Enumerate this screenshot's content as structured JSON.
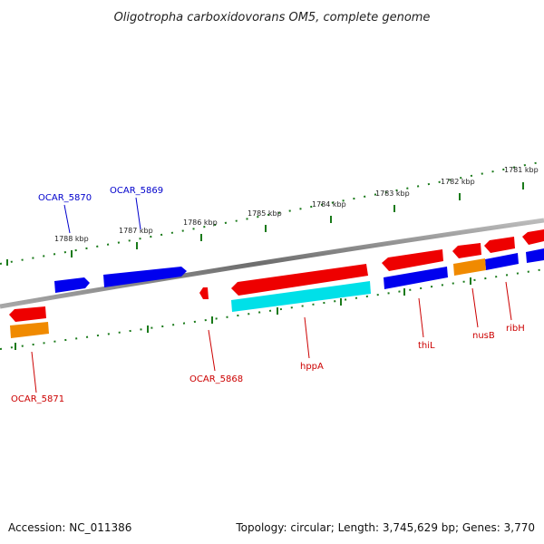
{
  "title": "Oligotropha carboxidovorans OM5, complete genome",
  "footer": {
    "accession": "Accession: NC_011386",
    "summary": "Topology: circular; Length: 3,745,629 bp; Genes: 3,770"
  },
  "colors": {
    "backbone": "#7a7a7a",
    "tick": "#1a7a1a",
    "forward_label": "#0000cc",
    "reverse_label": "#cc0000",
    "blue": "#0000ee",
    "red": "#ee0000",
    "cyan": "#00e0e8",
    "orange": "#f08a00"
  },
  "scale": {
    "tick_labels": [
      "1788 kbp",
      "1787 kbp",
      "1786 kbp",
      "1785 kbp",
      "1784 kbp",
      "1783 kbp",
      "1782 kbp",
      "1781 kbp"
    ]
  },
  "gene_labels": {
    "ocar_5870": "OCAR_5870",
    "ocar_5869": "OCAR_5869",
    "ocar_5868": "OCAR_5868",
    "ocar_5871": "OCAR_5871",
    "hppA": "hppA",
    "thiL": "thiL",
    "nusB": "nusB",
    "ribH": "ribH"
  }
}
